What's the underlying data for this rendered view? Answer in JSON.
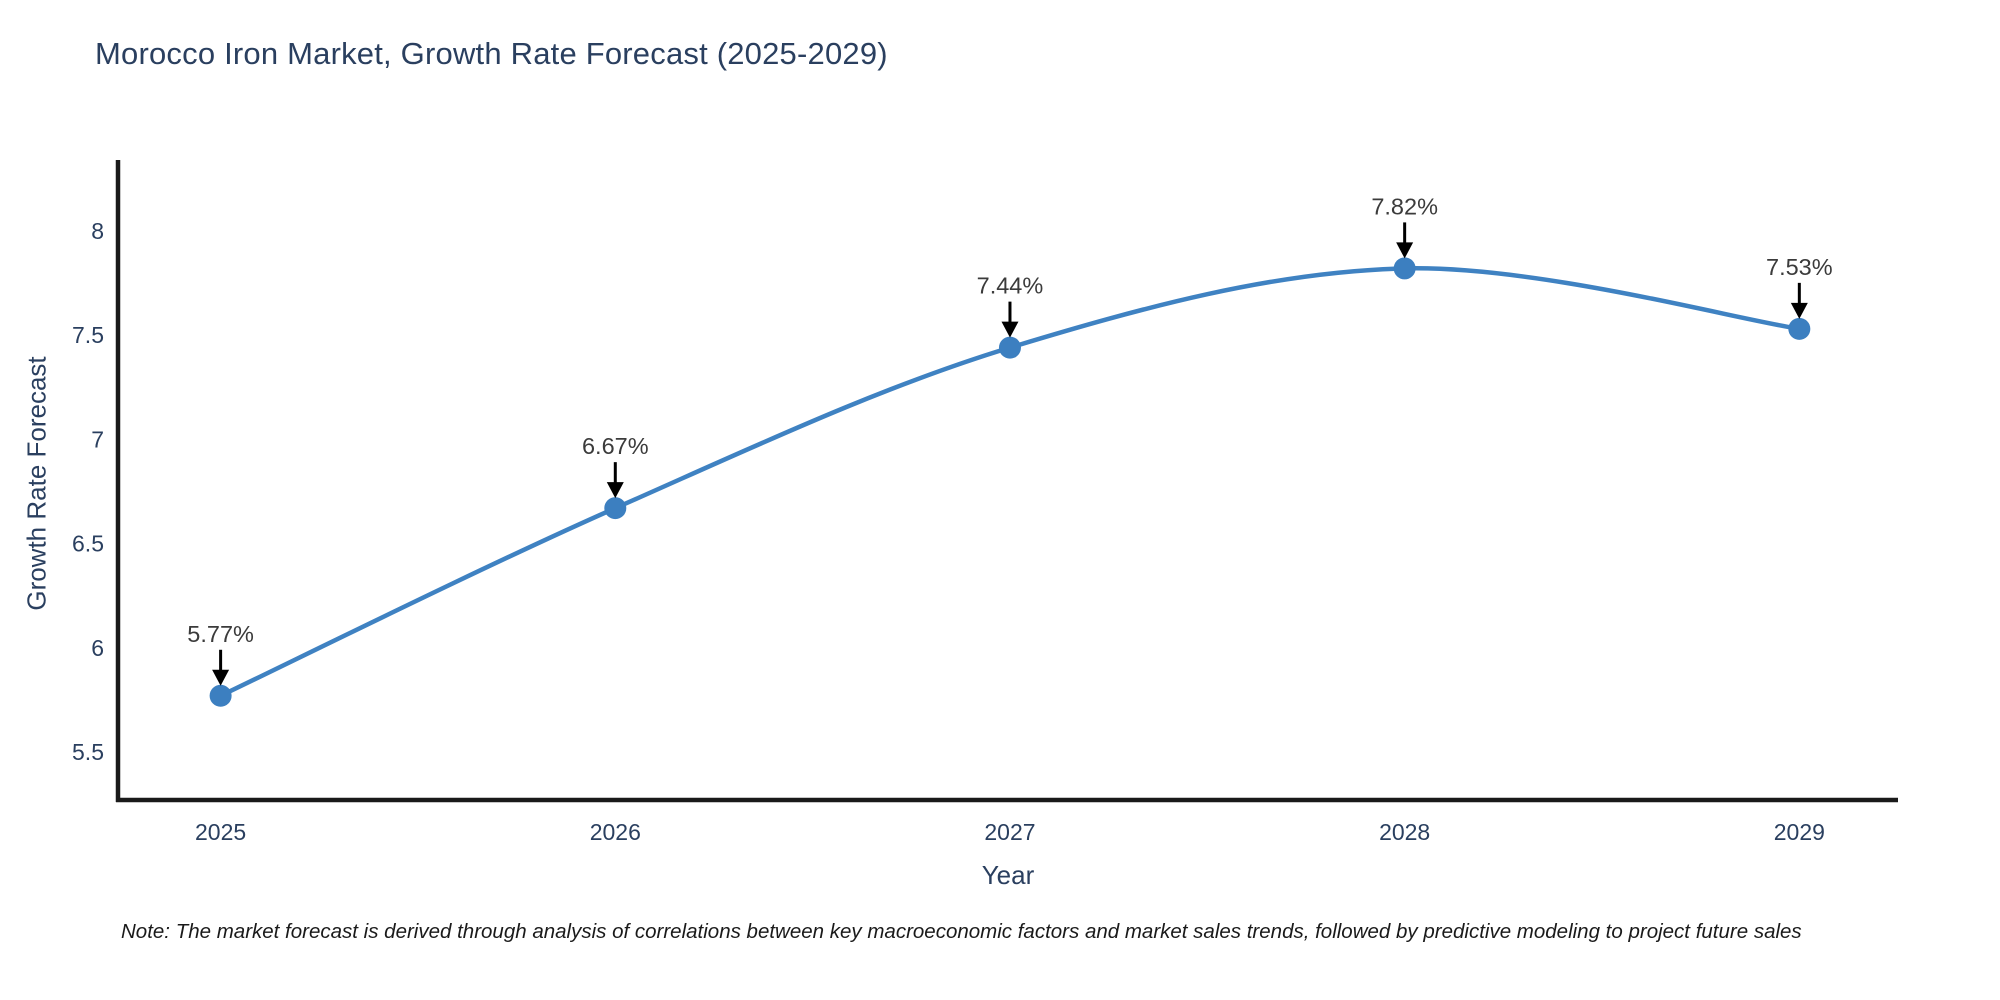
{
  "title": "Morocco Iron Market, Growth Rate Forecast (2025-2029)",
  "note": "Note: The market forecast is derived through analysis of correlations between key macroeconomic factors and market sales trends, followed by predictive modeling to project future sales",
  "chart_data": {
    "type": "line",
    "title": "Morocco Iron Market, Growth Rate Forecast (2025-2029)",
    "xlabel": "Year",
    "ylabel": "Growth Rate Forecast",
    "x": [
      2025,
      2026,
      2027,
      2028,
      2029
    ],
    "values": [
      5.77,
      6.67,
      7.44,
      7.82,
      7.53
    ],
    "point_labels": [
      "5.77%",
      "6.67%",
      "7.44%",
      "7.82%",
      "7.53%"
    ],
    "x_tick_labels": [
      "2025",
      "2026",
      "2027",
      "2028",
      "2029"
    ],
    "y_ticks": [
      5.5,
      6,
      6.5,
      7,
      7.5,
      8
    ],
    "y_tick_labels": [
      "5.5",
      "6",
      "6.5",
      "7",
      "7.5",
      "8"
    ],
    "xlim": [
      2024.74,
      2029.25
    ],
    "ylim": [
      5.27,
      8.34
    ],
    "grid": false,
    "legend": false,
    "line_shape": "spline",
    "colors": {
      "line": "#3f82c2",
      "marker": "#3c7fc0",
      "axis": "#1a1a1a",
      "tick_text": "#2a3f5f",
      "annotation_text": "#3b3b3b",
      "arrow": "#000000"
    }
  }
}
